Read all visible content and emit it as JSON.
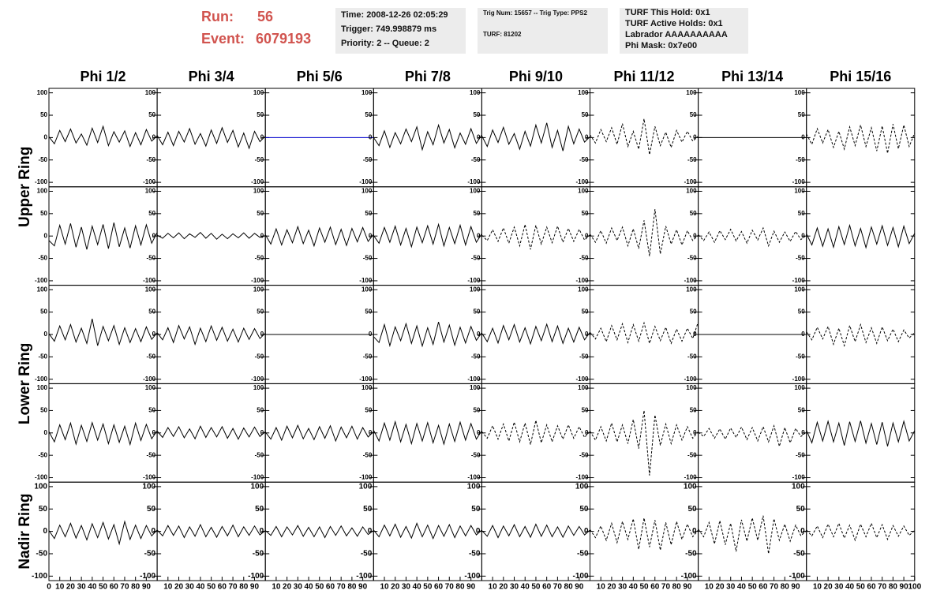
{
  "header": {
    "run_label": "Run:",
    "run": "56",
    "event_label": "Event:",
    "event": "6079193",
    "box1": [
      "Time: 2008-12-26 02:05:29",
      "Trigger: 749.998879 ms",
      "Priority: 2 -- Queue: 2"
    ],
    "box2": [
      "Trig Num: 15657 -- Trig Type: PPS2",
      "TURF: 81202"
    ],
    "box3": [
      "TURF This Hold: 0x1",
      "TURF Active Holds: 0x1",
      "Labrador AAAAAAAAAA",
      "Phi Mask: 0x7e00"
    ]
  },
  "chart_data": {
    "type": "line",
    "column_titles": [
      "Phi 1/2",
      "Phi 3/4",
      "Phi 5/6",
      "Phi 7/8",
      "Phi 9/10",
      "Phi 11/12",
      "Phi 13/14",
      "Phi 15/16"
    ],
    "row_titles": [
      "Upper Ring",
      "Lower Ring",
      "Nadir Ring"
    ],
    "x": [
      0,
      5,
      10,
      15,
      20,
      25,
      30,
      35,
      40,
      45,
      50,
      55,
      60,
      65,
      70,
      75,
      80,
      85,
      90,
      95,
      100
    ],
    "xlim": [
      0,
      100
    ],
    "xticks": [
      0,
      10,
      20,
      30,
      40,
      50,
      60,
      70,
      80,
      90,
      100
    ],
    "ylim": [
      -110,
      110
    ],
    "yticks": [
      100,
      50,
      0,
      -50,
      -100
    ],
    "panels": [
      [
        {
          "color": "#000000",
          "dashed": false,
          "values": [
            2,
            -14,
            16,
            -9,
            19,
            -12,
            8,
            -17,
            21,
            -11,
            25,
            -18,
            13,
            -10,
            15,
            -20,
            11,
            -16,
            18,
            -8,
            4
          ]
        },
        {
          "color": "#000000",
          "dashed": false,
          "values": [
            5,
            -16,
            12,
            -18,
            14,
            -10,
            20,
            -15,
            9,
            -19,
            17,
            -13,
            22,
            -11,
            16,
            -21,
            10,
            -24,
            14,
            -9,
            3
          ]
        },
        {
          "color": "#0000cc",
          "dashed": false,
          "values": [
            0,
            0,
            0,
            0,
            0,
            0,
            0,
            0,
            0,
            0,
            0,
            0,
            0,
            0,
            0,
            0,
            0,
            0,
            0,
            0,
            0
          ]
        },
        {
          "color": "#000000",
          "dashed": false,
          "values": [
            0,
            -18,
            15,
            -22,
            11,
            -14,
            19,
            -9,
            24,
            -27,
            13,
            -16,
            28,
            -12,
            18,
            -23,
            10,
            -15,
            20,
            -13,
            6
          ]
        },
        {
          "color": "#000000",
          "dashed": false,
          "values": [
            4,
            -20,
            17,
            -11,
            23,
            -15,
            9,
            -26,
            14,
            -19,
            28,
            -12,
            33,
            -22,
            16,
            -30,
            25,
            -14,
            19,
            -10,
            2
          ]
        },
        {
          "color": "#000000",
          "dashed": true,
          "values": [
            6,
            -12,
            18,
            -9,
            22,
            -15,
            31,
            -20,
            14,
            -26,
            42,
            -38,
            25,
            -18,
            12,
            -22,
            16,
            -10,
            14,
            -8,
            3
          ]
        },
        {
          "color": "#000000",
          "dashed": false,
          "values": [
            0,
            0,
            0,
            0,
            0,
            0,
            0,
            0,
            0,
            0,
            0,
            0,
            0,
            0,
            0,
            0,
            0,
            0,
            0,
            0,
            0
          ]
        },
        {
          "color": "#000000",
          "dashed": true,
          "values": [
            8,
            -15,
            20,
            -12,
            18,
            -22,
            14,
            -26,
            24,
            -18,
            28,
            -20,
            22,
            -30,
            26,
            -35,
            30,
            -25,
            28,
            -20,
            10
          ]
        }
      ],
      [
        {
          "color": "#000000",
          "dashed": false,
          "values": [
            -10,
            -22,
            24,
            -18,
            28,
            -25,
            20,
            -30,
            22,
            -19,
            26,
            -28,
            30,
            -24,
            18,
            -27,
            23,
            -20,
            25,
            -16,
            8
          ]
        },
        {
          "color": "#000000",
          "dashed": false,
          "values": [
            2,
            -5,
            6,
            -4,
            7,
            -6,
            5,
            -3,
            8,
            -5,
            6,
            -7,
            4,
            -6,
            5,
            -4,
            7,
            -5,
            6,
            -3,
            1
          ]
        },
        {
          "color": "#000000",
          "dashed": false,
          "values": [
            3,
            -18,
            16,
            -20,
            14,
            -15,
            21,
            -17,
            13,
            -22,
            18,
            -14,
            20,
            -19,
            15,
            -21,
            17,
            -13,
            19,
            -12,
            4
          ]
        },
        {
          "color": "#000000",
          "dashed": false,
          "values": [
            1,
            -16,
            19,
            -14,
            22,
            -20,
            17,
            -24,
            20,
            -15,
            23,
            -18,
            26,
            -22,
            19,
            -17,
            24,
            -20,
            21,
            -14,
            5
          ]
        },
        {
          "color": "#000000",
          "dashed": true,
          "values": [
            2,
            -10,
            14,
            -12,
            18,
            -16,
            20,
            -22,
            26,
            -30,
            24,
            -18,
            20,
            -15,
            22,
            -14,
            17,
            -12,
            15,
            -9,
            3
          ]
        },
        {
          "color": "#000000",
          "dashed": true,
          "values": [
            4,
            -14,
            12,
            -16,
            18,
            -10,
            20,
            -22,
            16,
            -28,
            35,
            -45,
            60,
            -40,
            22,
            -18,
            14,
            -20,
            12,
            -10,
            2
          ]
        },
        {
          "color": "#000000",
          "dashed": true,
          "values": [
            3,
            -10,
            9,
            -14,
            12,
            -8,
            15,
            -11,
            10,
            -16,
            13,
            -9,
            18,
            -22,
            11,
            -14,
            9,
            -12,
            10,
            -8,
            2
          ]
        },
        {
          "color": "#000000",
          "dashed": false,
          "values": [
            5,
            -20,
            18,
            -23,
            16,
            -25,
            21,
            -19,
            24,
            -22,
            17,
            -26,
            20,
            -18,
            23,
            -21,
            19,
            -24,
            22,
            -17,
            6
          ]
        }
      ],
      [
        {
          "color": "#000000",
          "dashed": false,
          "values": [
            2,
            -15,
            19,
            -12,
            22,
            -17,
            14,
            -20,
            35,
            -25,
            18,
            -14,
            20,
            -22,
            15,
            -18,
            13,
            -16,
            17,
            -11,
            4
          ]
        },
        {
          "color": "#000000",
          "dashed": false,
          "values": [
            4,
            -12,
            15,
            -18,
            20,
            -10,
            17,
            -22,
            14,
            -16,
            19,
            -13,
            16,
            -15,
            12,
            -17,
            14,
            -11,
            13,
            -9,
            3
          ]
        },
        {
          "color": "#000000",
          "dashed": false,
          "values": [
            0,
            0,
            0,
            0,
            0,
            0,
            0,
            0,
            0,
            0,
            0,
            0,
            0,
            0,
            0,
            0,
            0,
            0,
            0,
            0,
            0
          ]
        },
        {
          "color": "#000000",
          "dashed": false,
          "values": [
            -5,
            -18,
            22,
            -25,
            17,
            -14,
            24,
            -20,
            19,
            -26,
            15,
            -22,
            28,
            -17,
            21,
            -24,
            16,
            -19,
            18,
            -13,
            4
          ]
        },
        {
          "color": "#000000",
          "dashed": false,
          "values": [
            3,
            -16,
            14,
            -19,
            20,
            -12,
            22,
            -17,
            15,
            -21,
            18,
            -14,
            23,
            -16,
            19,
            -20,
            14,
            -17,
            16,
            -12,
            5
          ]
        },
        {
          "color": "#000000",
          "dashed": true,
          "values": [
            5,
            -10,
            14,
            -16,
            20,
            -12,
            24,
            -18,
            22,
            -15,
            26,
            -20,
            18,
            -14,
            16,
            -20,
            12,
            -15,
            14,
            -9,
            28
          ]
        },
        {
          "color": "#000000",
          "dashed": false,
          "values": [
            0,
            0,
            0,
            0,
            0,
            0,
            0,
            0,
            0,
            0,
            0,
            0,
            0,
            0,
            0,
            0,
            0,
            0,
            0,
            0,
            0
          ]
        },
        {
          "color": "#000000",
          "dashed": true,
          "values": [
            6,
            -12,
            16,
            -10,
            18,
            -22,
            14,
            -25,
            20,
            -16,
            22,
            -18,
            15,
            -20,
            17,
            -14,
            12,
            -16,
            10,
            -8,
            4
          ]
        }
      ],
      [
        {
          "color": "#000000",
          "dashed": false,
          "values": [
            3,
            -20,
            18,
            -15,
            22,
            -25,
            17,
            -19,
            23,
            -16,
            20,
            -24,
            18,
            -21,
            15,
            -26,
            22,
            -17,
            19,
            -13,
            5
          ]
        },
        {
          "color": "#000000",
          "dashed": false,
          "values": [
            4,
            -10,
            12,
            -8,
            14,
            -11,
            9,
            -13,
            15,
            -10,
            12,
            -9,
            14,
            -12,
            10,
            -14,
            11,
            -9,
            13,
            -8,
            3
          ]
        },
        {
          "color": "#000000",
          "dashed": false,
          "values": [
            2,
            -14,
            12,
            -16,
            15,
            -11,
            17,
            -13,
            10,
            -15,
            14,
            -12,
            16,
            -18,
            13,
            -11,
            15,
            -14,
            12,
            -9,
            3
          ]
        },
        {
          "color": "#000000",
          "dashed": false,
          "values": [
            6,
            -18,
            22,
            -16,
            25,
            -20,
            19,
            -24,
            21,
            -18,
            23,
            -22,
            17,
            -25,
            20,
            -19,
            24,
            -16,
            21,
            -14,
            5
          ]
        },
        {
          "color": "#000000",
          "dashed": true,
          "values": [
            3,
            -12,
            16,
            -14,
            20,
            -18,
            24,
            -20,
            22,
            -26,
            28,
            -22,
            18,
            -20,
            16,
            -14,
            18,
            -12,
            14,
            -10,
            4
          ]
        },
        {
          "color": "#000000",
          "dashed": true,
          "values": [
            4,
            -16,
            14,
            -18,
            22,
            -20,
            18,
            -24,
            30,
            -35,
            50,
            -95,
            40,
            -28,
            20,
            -24,
            18,
            -16,
            14,
            -12,
            3
          ]
        },
        {
          "color": "#000000",
          "dashed": true,
          "values": [
            2,
            -8,
            10,
            -12,
            9,
            -14,
            11,
            -10,
            13,
            -15,
            12,
            -18,
            14,
            -20,
            16,
            -30,
            12,
            -22,
            10,
            -8,
            2
          ]
        },
        {
          "color": "#000000",
          "dashed": false,
          "values": [
            6,
            -22,
            24,
            -18,
            26,
            -20,
            22,
            -28,
            25,
            -19,
            27,
            -23,
            21,
            -26,
            24,
            -30,
            22,
            -20,
            26,
            -18,
            5
          ]
        }
      ],
      [
        {
          "color": "#000000",
          "dashed": false,
          "values": [
            2,
            -16,
            14,
            -12,
            18,
            -15,
            13,
            -19,
            17,
            -14,
            20,
            -17,
            15,
            -28,
            22,
            -18,
            14,
            -16,
            13,
            -10,
            3
          ]
        },
        {
          "color": "#000000",
          "dashed": false,
          "values": [
            3,
            -10,
            13,
            -9,
            12,
            -14,
            10,
            -11,
            15,
            -12,
            9,
            -13,
            11,
            -10,
            14,
            -12,
            10,
            -9,
            12,
            -8,
            2
          ]
        },
        {
          "color": "#000000",
          "dashed": false,
          "values": [
            2,
            -9,
            11,
            -12,
            10,
            -8,
            13,
            -11,
            9,
            -12,
            10,
            -14,
            11,
            -9,
            12,
            -10,
            8,
            -11,
            10,
            -7,
            2
          ]
        },
        {
          "color": "#000000",
          "dashed": false,
          "values": [
            3,
            -12,
            14,
            -10,
            16,
            -13,
            11,
            -15,
            18,
            -12,
            14,
            -16,
            13,
            -11,
            15,
            -14,
            12,
            -10,
            13,
            -8,
            3
          ]
        },
        {
          "color": "#000000",
          "dashed": false,
          "values": [
            2,
            -11,
            13,
            -14,
            12,
            -10,
            15,
            -12,
            11,
            -13,
            16,
            -11,
            14,
            -12,
            10,
            -13,
            12,
            -9,
            11,
            -8,
            3
          ]
        },
        {
          "color": "#000000",
          "dashed": true,
          "values": [
            4,
            -14,
            12,
            -20,
            18,
            -25,
            22,
            -18,
            28,
            -40,
            30,
            -35,
            25,
            -42,
            20,
            -30,
            22,
            -18,
            16,
            -12,
            3
          ]
        },
        {
          "color": "#000000",
          "dashed": true,
          "values": [
            5,
            -12,
            20,
            -28,
            24,
            -30,
            18,
            -45,
            26,
            -22,
            30,
            -20,
            35,
            -50,
            28,
            -20,
            16,
            -22,
            14,
            -10,
            2
          ]
        },
        {
          "color": "#000000",
          "dashed": true,
          "values": [
            3,
            -10,
            12,
            -14,
            16,
            -12,
            18,
            -15,
            14,
            -20,
            16,
            -12,
            18,
            -14,
            15,
            -18,
            13,
            -11,
            12,
            -9,
            2
          ]
        }
      ]
    ]
  }
}
